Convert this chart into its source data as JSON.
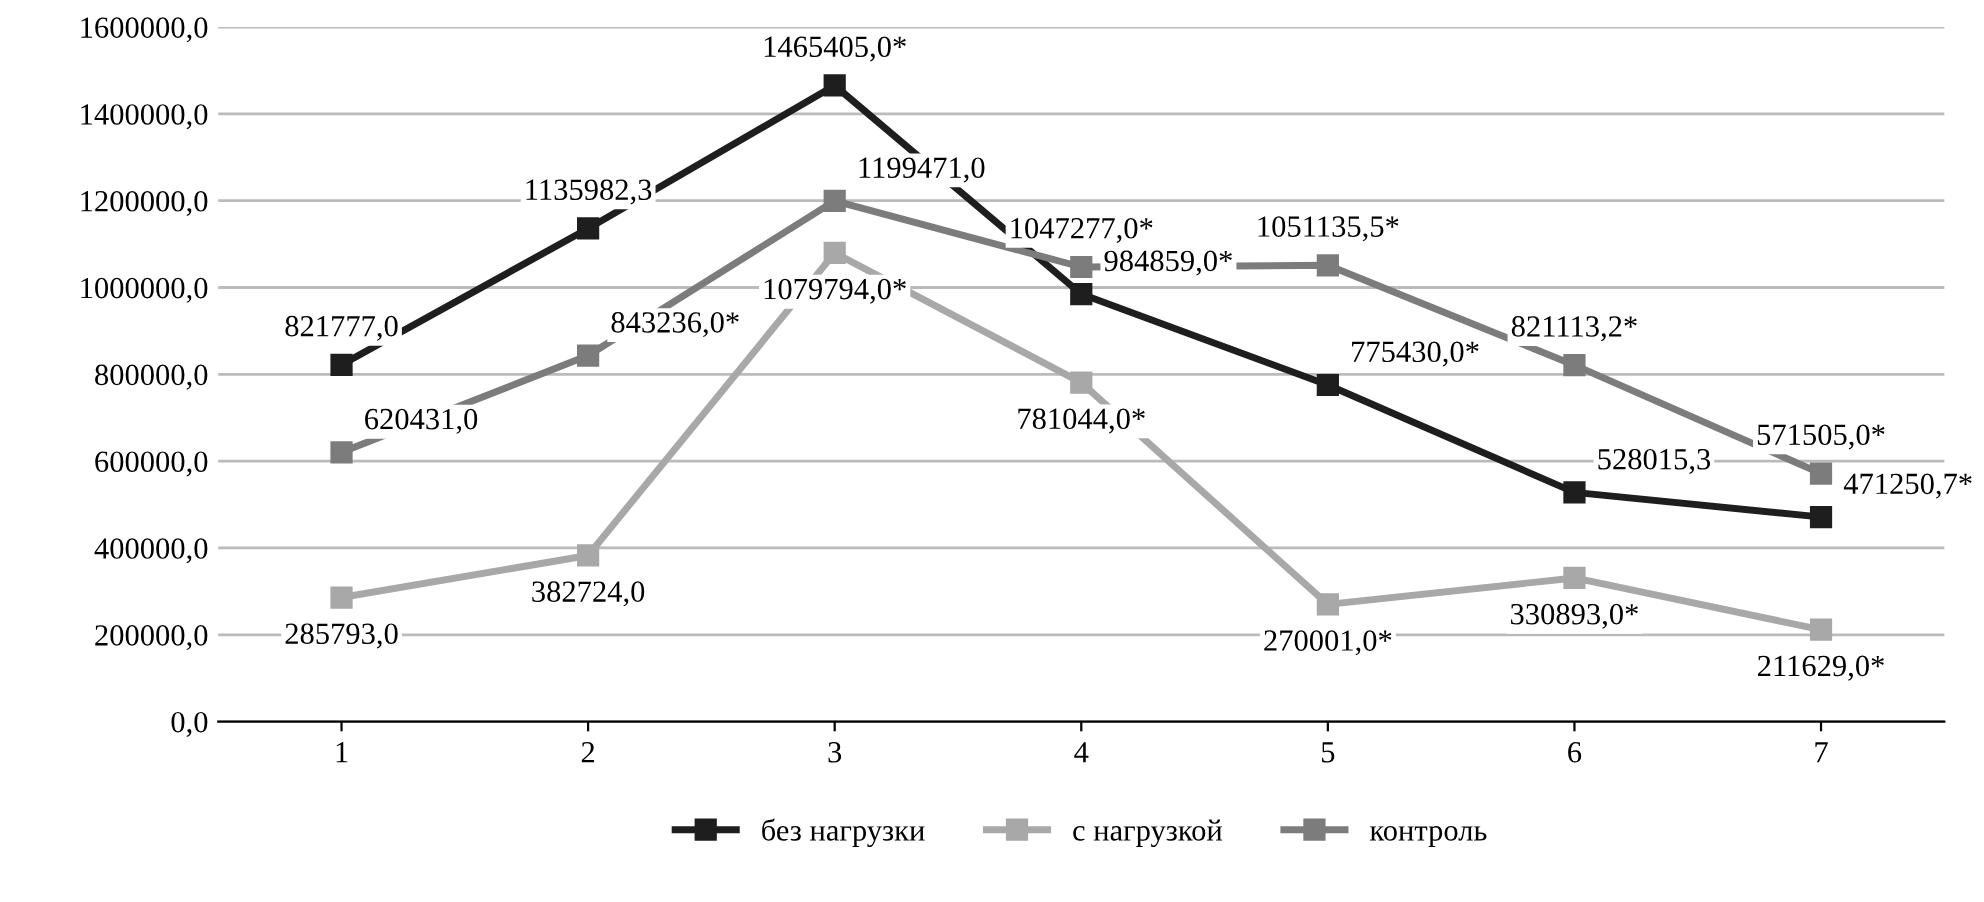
{
  "chart_data": {
    "type": "line",
    "categories": [
      "1",
      "2",
      "3",
      "4",
      "5",
      "6",
      "7"
    ],
    "series": [
      {
        "name": "без нагрузки",
        "color": "#1e1e1e",
        "values": [
          821777.0,
          1135982.3,
          1465405.0,
          984859.0,
          775430.0,
          528015.3,
          471250.7
        ],
        "value_labels": [
          "821777,0",
          "1135982,3",
          "1465405,0*",
          "984859,0*",
          "775430,0*",
          "528015,3",
          "471250,7*"
        ]
      },
      {
        "name": "с нагрузкой",
        "color": "#a8a8a8",
        "values": [
          285793.0,
          382724.0,
          1079794.0,
          781044.0,
          270001.0,
          330893.0,
          211629.0
        ],
        "value_labels": [
          "285793,0",
          "382724,0",
          "1079794,0*",
          "781044,0*",
          "270001,0*",
          "330893,0*",
          "211629,0*"
        ]
      },
      {
        "name": "контроль",
        "color": "#7c7c7c",
        "values": [
          620431.0,
          843236.0,
          1199471.0,
          1047277.0,
          1051135.5,
          821113.2,
          571505.0
        ],
        "value_labels": [
          "620431,0",
          "843236,0*",
          "1199471,0",
          "1047277,0*",
          "1051135,5*",
          "821113,2*",
          "571505,0*"
        ]
      }
    ],
    "ylim": [
      0,
      1600000
    ],
    "yticks": [
      {
        "value": 0,
        "label": "0,0"
      },
      {
        "value": 200000,
        "label": "200000,0"
      },
      {
        "value": 400000,
        "label": "400000,0"
      },
      {
        "value": 600000,
        "label": "600000,0"
      },
      {
        "value": 800000,
        "label": "800000,0"
      },
      {
        "value": 1000000,
        "label": "1000000,0"
      },
      {
        "value": 1200000,
        "label": "1200000,0"
      },
      {
        "value": 1400000,
        "label": "1400000,0"
      },
      {
        "value": 1600000,
        "label": "1600000,0"
      }
    ],
    "grid": "y",
    "legend": "bottom",
    "marker": "square",
    "line_style": "solid"
  }
}
